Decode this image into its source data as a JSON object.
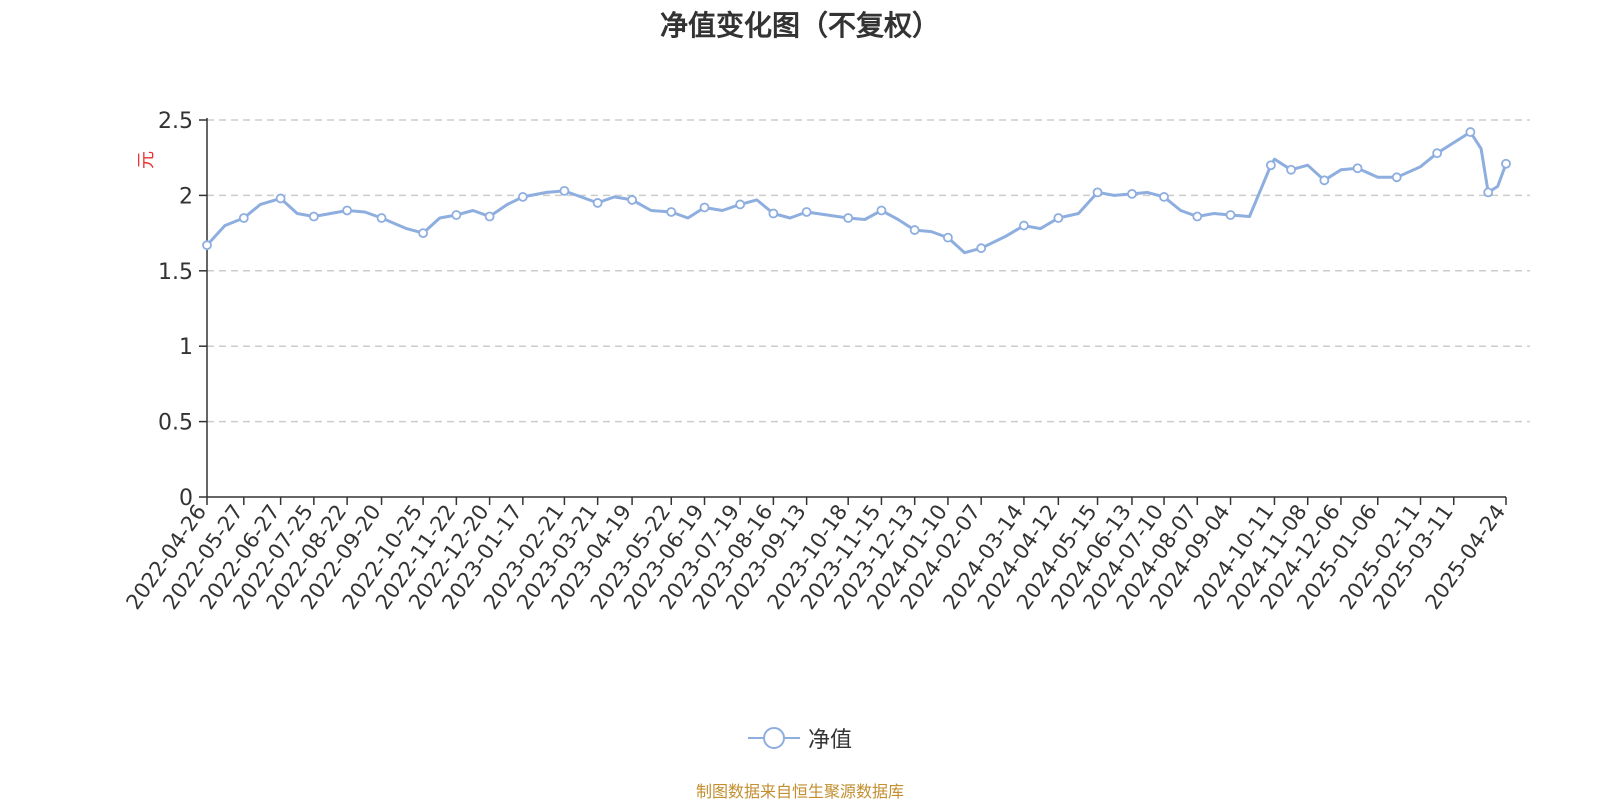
{
  "chart_data": {
    "type": "line",
    "title": "净值变化图（不复权）",
    "ylabel": "元",
    "ylim": [
      0,
      2.5
    ],
    "y_ticks": [
      "0",
      "0.5",
      "1",
      "1.5",
      "2",
      "2.5"
    ],
    "grid": "horizontal dashed",
    "legend_position": "bottom-center",
    "line_color": "#8eaedf",
    "ylabel_color": "#e8322f",
    "x_tick_labels": [
      "2022-04-26",
      "2022-05-27",
      "2022-06-27",
      "2022-07-25",
      "2022-08-22",
      "2022-09-20",
      "2022-10-25",
      "2022-11-22",
      "2022-12-20",
      "2023-01-17",
      "2023-02-21",
      "2023-03-21",
      "2023-04-19",
      "2023-05-22",
      "2023-06-19",
      "2023-07-19",
      "2023-08-16",
      "2023-09-13",
      "2023-10-18",
      "2023-11-15",
      "2023-12-13",
      "2024-01-10",
      "2024-02-07",
      "2024-03-14",
      "2024-04-12",
      "2024-05-15",
      "2024-06-13",
      "2024-07-10",
      "2024-08-07",
      "2024-09-04",
      "2024-10-11",
      "2024-11-08",
      "2024-12-06",
      "2025-01-06",
      "2025-02-11",
      "2025-03-11",
      "2025-04-24"
    ],
    "series": [
      {
        "name": "净值",
        "x": [
          "2022-04-26",
          "2022-05-11",
          "2022-05-27",
          "2022-06-10",
          "2022-06-27",
          "2022-07-11",
          "2022-07-25",
          "2022-08-08",
          "2022-08-22",
          "2022-09-06",
          "2022-09-20",
          "2022-10-11",
          "2022-10-25",
          "2022-11-08",
          "2022-11-22",
          "2022-12-06",
          "2022-12-20",
          "2023-01-04",
          "2023-01-17",
          "2023-02-06",
          "2023-02-21",
          "2023-03-07",
          "2023-03-21",
          "2023-04-04",
          "2023-04-19",
          "2023-05-05",
          "2023-05-22",
          "2023-06-05",
          "2023-06-19",
          "2023-07-04",
          "2023-07-19",
          "2023-08-02",
          "2023-08-16",
          "2023-08-30",
          "2023-09-13",
          "2023-10-09",
          "2023-10-18",
          "2023-11-01",
          "2023-11-15",
          "2023-11-29",
          "2023-12-13",
          "2023-12-27",
          "2024-01-10",
          "2024-01-24",
          "2024-02-07",
          "2024-02-28",
          "2024-03-14",
          "2024-03-28",
          "2024-04-12",
          "2024-04-29",
          "2024-05-15",
          "2024-05-29",
          "2024-06-13",
          "2024-06-26",
          "2024-07-10",
          "2024-07-24",
          "2024-08-07",
          "2024-08-21",
          "2024-09-04",
          "2024-09-20",
          "2024-10-08",
          "2024-10-11",
          "2024-10-25",
          "2024-11-08",
          "2024-11-22",
          "2024-12-06",
          "2024-12-20",
          "2025-01-06",
          "2025-01-22",
          "2025-02-11",
          "2025-02-25",
          "2025-03-11",
          "2025-03-25",
          "2025-04-03",
          "2025-04-09",
          "2025-04-17",
          "2025-04-24"
        ],
        "values": [
          1.67,
          1.8,
          1.85,
          1.94,
          1.98,
          1.88,
          1.86,
          1.88,
          1.9,
          1.89,
          1.85,
          1.78,
          1.75,
          1.85,
          1.87,
          1.9,
          1.86,
          1.94,
          1.99,
          2.02,
          2.03,
          1.99,
          1.95,
          1.99,
          1.97,
          1.9,
          1.89,
          1.85,
          1.92,
          1.9,
          1.94,
          1.97,
          1.88,
          1.85,
          1.89,
          1.86,
          1.85,
          1.84,
          1.9,
          1.84,
          1.77,
          1.76,
          1.72,
          1.62,
          1.65,
          1.73,
          1.8,
          1.78,
          1.85,
          1.88,
          2.02,
          2.0,
          2.01,
          2.02,
          1.99,
          1.9,
          1.86,
          1.88,
          1.87,
          1.86,
          2.2,
          2.24,
          2.17,
          2.2,
          2.1,
          2.17,
          2.18,
          2.12,
          2.12,
          2.19,
          2.28,
          2.35,
          2.42,
          2.31,
          2.02,
          2.06,
          2.21
        ]
      }
    ]
  },
  "legend": {
    "label": "净值"
  },
  "source_note": "制图数据来自恒生聚源数据库"
}
